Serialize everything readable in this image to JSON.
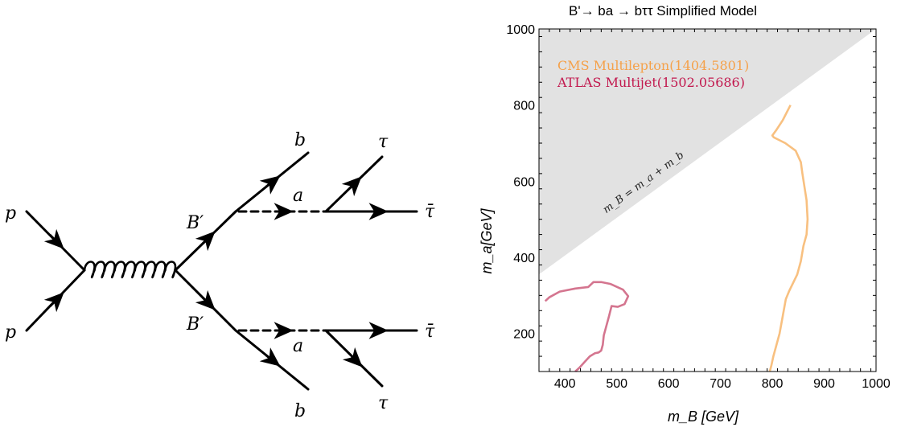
{
  "diagram": {
    "particles": {
      "p_top": "p",
      "p_bottom": "p",
      "bprime_top": "B′",
      "bprime_bottom": "B′",
      "b_top": "b",
      "b_bottom": "b",
      "a_top": "a",
      "a_bottom": "a",
      "tau_top": "τ",
      "tau_bottom": "τ",
      "taubar_top": "τ̄",
      "taubar_bottom": "τ̄"
    }
  },
  "chart_data": {
    "type": "line",
    "title": "B'→ ba → bττ Simplified Model",
    "xlabel": "m_B [GeV]",
    "ylabel": "m_a[GeV]",
    "xlim": [
      350,
      1000
    ],
    "ylim": [
      100,
      1000
    ],
    "xticks": [
      400,
      500,
      600,
      700,
      800,
      900,
      1000
    ],
    "yticks": [
      200,
      400,
      600,
      800,
      1000
    ],
    "grid": false,
    "legend_position": "top-left",
    "legend": [
      {
        "label": "CMS Multilepton(1404.5801)",
        "color": "#f5a14a"
      },
      {
        "label": "ATLAS Multijet(1502.05686)",
        "color": "#c2184e"
      }
    ],
    "shaded_region": {
      "label": "m_B = m_a + m_b",
      "color": "#e2e2e2",
      "boundary": [
        [
          350,
          355
        ],
        [
          1000,
          1000
        ]
      ]
    },
    "series": [
      {
        "name": "CMS Multilepton(1404.5801)",
        "color": "#f8c080",
        "x": [
          835,
          820,
          808,
          800,
          803,
          825,
          845,
          855,
          858,
          862,
          866,
          868,
          866,
          860,
          855,
          848,
          832,
          826,
          822,
          818,
          814,
          808,
          802,
          798,
          795
        ],
        "y": [
          800,
          760,
          735,
          720,
          715,
          700,
          680,
          650,
          620,
          585,
          550,
          500,
          460,
          430,
          390,
          355,
          310,
          290,
          260,
          230,
          200,
          170,
          140,
          115,
          100
        ]
      },
      {
        "name": "ATLAS Multijet(1502.05686)",
        "color": "#d4758f",
        "x": [
          362,
          370,
          390,
          420,
          445,
          455,
          470,
          488,
          512,
          522,
          515,
          502,
          490,
          485,
          480,
          475,
          473,
          470,
          465,
          458,
          448,
          438,
          428,
          420
        ],
        "y": [
          285,
          295,
          310,
          318,
          322,
          335,
          335,
          330,
          315,
          298,
          277,
          270,
          272,
          245,
          220,
          195,
          170,
          155,
          150,
          148,
          140,
          125,
          110,
          100
        ]
      }
    ]
  }
}
